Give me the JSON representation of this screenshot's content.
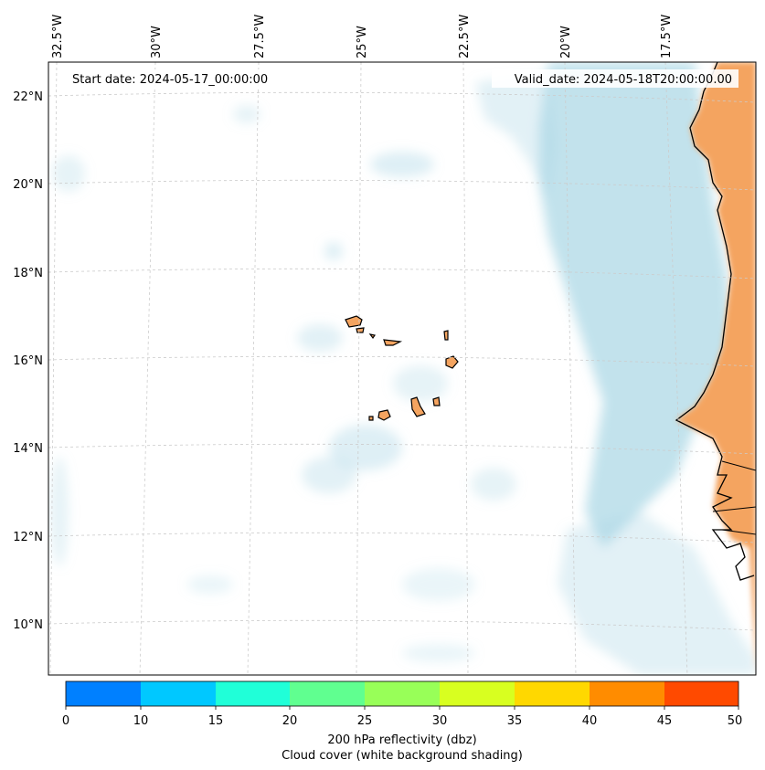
{
  "map": {
    "lon_labels": [
      "32.5°W",
      "30°W",
      "27.5°W",
      "25°W",
      "22.5°W",
      "20°W",
      "17.5°W"
    ],
    "lat_labels": [
      "22°N",
      "20°N",
      "18°N",
      "16°N",
      "14°N",
      "12°N",
      "10°N"
    ],
    "start_date": "Start date: 2024-05-17_00:00:00",
    "valid_date": "Valid_date: 2024-05-18T20:00:00.00",
    "colors": {
      "land": "#f4a460",
      "cloud": "#add8e6",
      "grid": "#cccccc",
      "coast": "#000000"
    }
  },
  "colorbar": {
    "ticks": [
      "0",
      "10",
      "15",
      "20",
      "25",
      "30",
      "35",
      "40",
      "45",
      "50"
    ],
    "colors": [
      "#0080ff",
      "#00c8ff",
      "#20ffd8",
      "#60ff90",
      "#98ff58",
      "#d8ff20",
      "#ffd800",
      "#ff8c00",
      "#ff4a00"
    ],
    "title_line1": "200 hPa reflectivity (dbz)",
    "title_line2": "Cloud cover (white background shading)"
  }
}
